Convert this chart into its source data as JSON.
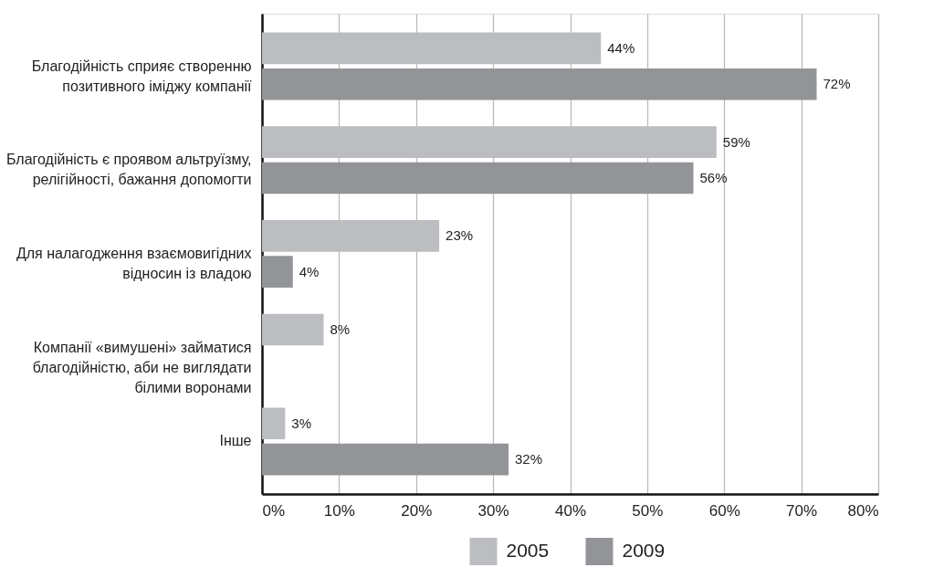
{
  "chart_data": {
    "type": "bar",
    "orientation": "horizontal",
    "categories": [
      "Благодійність сприяє створенню\nпозитивного іміджу компанії",
      "Благодійність є проявом альтруїзму,\nрелігійності, бажання допомогти",
      "Для налагодження взаємовигідних\nвідносин із владою",
      "Компанії «вимушені» займатися\nблагодійністю, аби не виглядати\nбілими воронами",
      "Інше"
    ],
    "series": [
      {
        "name": "2005",
        "color": "#bcbdc1",
        "values": [
          44,
          59,
          23,
          8,
          3
        ],
        "value_labels": [
          "44%",
          "59%",
          "23%",
          "8%",
          "3%"
        ]
      },
      {
        "name": "2009",
        "color": "#939498",
        "values": [
          72,
          56,
          4,
          null,
          32
        ],
        "value_labels": [
          "72%",
          "56%",
          "4%",
          null,
          "32%"
        ]
      }
    ],
    "xlim": [
      0,
      80
    ],
    "xticks": [
      {
        "value": 0,
        "label": "0%"
      },
      {
        "value": 10,
        "label": "10%"
      },
      {
        "value": 20,
        "label": "20%"
      },
      {
        "value": 30,
        "label": "30%"
      },
      {
        "value": 40,
        "label": "40%"
      },
      {
        "value": 50,
        "label": "50%"
      },
      {
        "value": 60,
        "label": "60%"
      },
      {
        "value": 70,
        "label": "70%"
      },
      {
        "value": 80,
        "label": "80%"
      }
    ],
    "grid": "x",
    "legend": "bottom"
  }
}
